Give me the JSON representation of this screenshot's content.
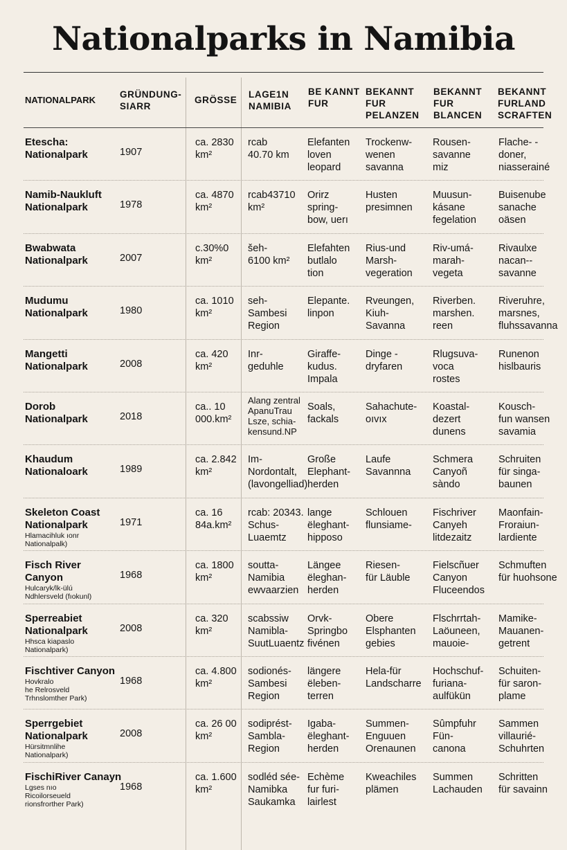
{
  "title": "Nationalparks in Namibia",
  "headers": [
    "NATIONALPARK",
    "GRÜNDUNG-\nSIARR",
    "GRÖSSE",
    "LAGE1N\nNAMIBIA",
    "BE KANNT\nFUR",
    "BEKANNT\nFUR\nPELANZEN",
    "BEKANNT\nFUR\nBLANCEN",
    "BEKANNT\nFURLAND\nSCRAFTEN"
  ],
  "rows": [
    {
      "name": "Etescha:\nNationalpark",
      "note": "",
      "year": "1907",
      "size": "ca. 2830\nkm²",
      "location": "rcab\n40.70 km",
      "k1": "Elefanten\nloven\nleopard",
      "k2": "Trockenw-\nwenen\nsavanna",
      "k3": "Rousen-\nsavanne\nmiz",
      "k4": "Flache- -\ndoner,\nniasserainé"
    },
    {
      "name": "Namib-Naukluft\nNationalpark",
      "note": "",
      "year": "1978",
      "size": "ca. 4870\nkm²",
      "location": "rcab43710\nkm²",
      "k1": "Orirz\nspring-\nbow, uerı",
      "k2": "Husten\npresimnen",
      "k3": "Muusun-\nkásane\nfegelation",
      "k4": "Buisenube\nsanache\noäsen"
    },
    {
      "name": "Bwabwata\nNationalpark",
      "note": "",
      "year": "2007",
      "size": "c.30%0\nkm²",
      "location": "šeh-\n6100 km²",
      "k1": "Elefahten\nbutlalo\ntion",
      "k2": "Rius-und\nMarsh-\nvegeration",
      "k3": "Riv-umá-\nmarah-\nvegeta",
      "k4": "Rivaulxe\nnacan--\nsavanne"
    },
    {
      "name": "Mudumu\nNationalpark",
      "note": "",
      "year": "1980",
      "size": "ca. 1010\nkm²",
      "location": "seh-\nSambesi\nRegion",
      "k1": "Elepante.\nlinpon",
      "k2": "Rveungen,\nKiuh-\nSavanna",
      "k3": "Riverben.\nmarshen.\nreen",
      "k4": "Riveruhre,\nmarsnes,\nfluhssavanna"
    },
    {
      "name": "Mangetti\nNationalpark",
      "note": "",
      "year": "2008",
      "size": "ca. 420\nkm²",
      "location": "Inr-\ngeduhle",
      "k1": "Giraffe-\nkudus.\nImpala",
      "k2": "Dinge -\ndryfaren",
      "k3": "Rlugsuva-\nvoca\nrostes",
      "k4": "Runenon\nhislbauris"
    },
    {
      "name": "Dorob\nNationalpark",
      "note": "",
      "year": "2018",
      "size": "ca.. 10\n000.km²",
      "location": "Alang zentral\nApanuTrau\nLsze, schia-\nkensund.NP",
      "k1": "Soals,\nfackals",
      "k2": "Sahachute-\noıvıx",
      "k3": "Koastal-\ndezert\ndunens",
      "k4": "Kousch-\nfun wansen\nsavamia"
    },
    {
      "name": "Khaudum\nNationaloark",
      "note": "",
      "year": "1989",
      "size": "ca. 2.842\nkm²",
      "location": "Im-\nNordontalt,\n(lavongelliad)",
      "k1": "Große\nElephant-\nherden",
      "k2": "Laufe\nSavannna",
      "k3": "Schmera\nCanyoñ\nsàndo",
      "k4": "Schruiten\nfür singa-\nbaunen"
    },
    {
      "name": "Skeleton Coast\nNationalpark",
      "note": "Hlamacihluk ıonr\nNationalpalk)",
      "year": "1971",
      "size": "ca. 16\n84a.km²",
      "location": "rcab: 20343.\nSchus-\nLuaemtz",
      "k1": "lange\nëleghant-\nhipposo",
      "k2": "Schlouen\nflunsiame-",
      "k3": "Fischriver\nCanyeh\nlitdezaitz",
      "k4": "Maonfain-\nFroraiun-\nlardiente"
    },
    {
      "name": "Fisch River\nCanyon",
      "note": "Hulcaryk/lk-ülú\nNdhlersveld (fıokunl)",
      "year": "1968",
      "size": "ca. 1800\nkm²",
      "location": "soutta-\nNamibia\newvaarzien",
      "k1": "Längee\nëleghan-\nherden",
      "k2": "Riesen-\nfür Läuble",
      "k3": "Fielscñuer\nCanyon\nFluceendos",
      "k4": "Schmuften\nfür huohsone"
    },
    {
      "name": "Sperreabiet\nNationalpark",
      "note": "Hhsca kiapaslo\nNationalpark)",
      "year": "2008",
      "size": "ca. 320\nkm²",
      "location": "scabssiw\nNamibla-\nSuutLuaentz",
      "k1": "Orvk-\nSpringbo\nfivénen",
      "k2": "Obere\nElsphanten\ngebies",
      "k3": "Flschrrtah-\nLaöuneen,\nmauoie-",
      "k4": "Mamike-\nMauanen-\ngetrent"
    },
    {
      "name": "Fischtiver Canyon",
      "note": "Hovkralo\nhe Relrosveld\nTrhnslomther Park)",
      "year": "1968",
      "size": "ca. 4.800\nkm²",
      "location": "sodionés-\nSambesi\nRegion",
      "k1": "längere\nëleben-\nterren",
      "k2": "Hela-für\nLandscharre",
      "k3": "Hochschuf-\nfuriana-\naulfükün",
      "k4": "Schuiten-\nfür saron-\nplame"
    },
    {
      "name": "Sperrgebiet\nNationalpark",
      "note": "Hürsitmnlihe\nNationalpark)",
      "year": "2008",
      "size": "ca. 26 00\nkm²",
      "location": "sodiprést-\nSambla-\nRegion",
      "k1": "Igaba-\nëleghant-\nherden",
      "k2": "Summen-\nEnguuen\nOrenaunen",
      "k3": "Sûmpfuhr\nFün-\ncanona",
      "k4": "Sammen\nvillaurié-\nSchuhrten"
    },
    {
      "name": "FischiRiver Canayn",
      "note": "Lgses nıo\nRicoilorseueld\nrionsfrorther Park)",
      "year": "1968",
      "size": "ca. 1.600\nkm²",
      "location": "sodléd sée-\nNamibka\nSaukamka",
      "k1": "Echème\nfur furi-\nlairlest",
      "k2": "Kweachiles\nplämen",
      "k3": "Summen\nLachauden",
      "k4": "Schritten\nfür savainn"
    }
  ]
}
